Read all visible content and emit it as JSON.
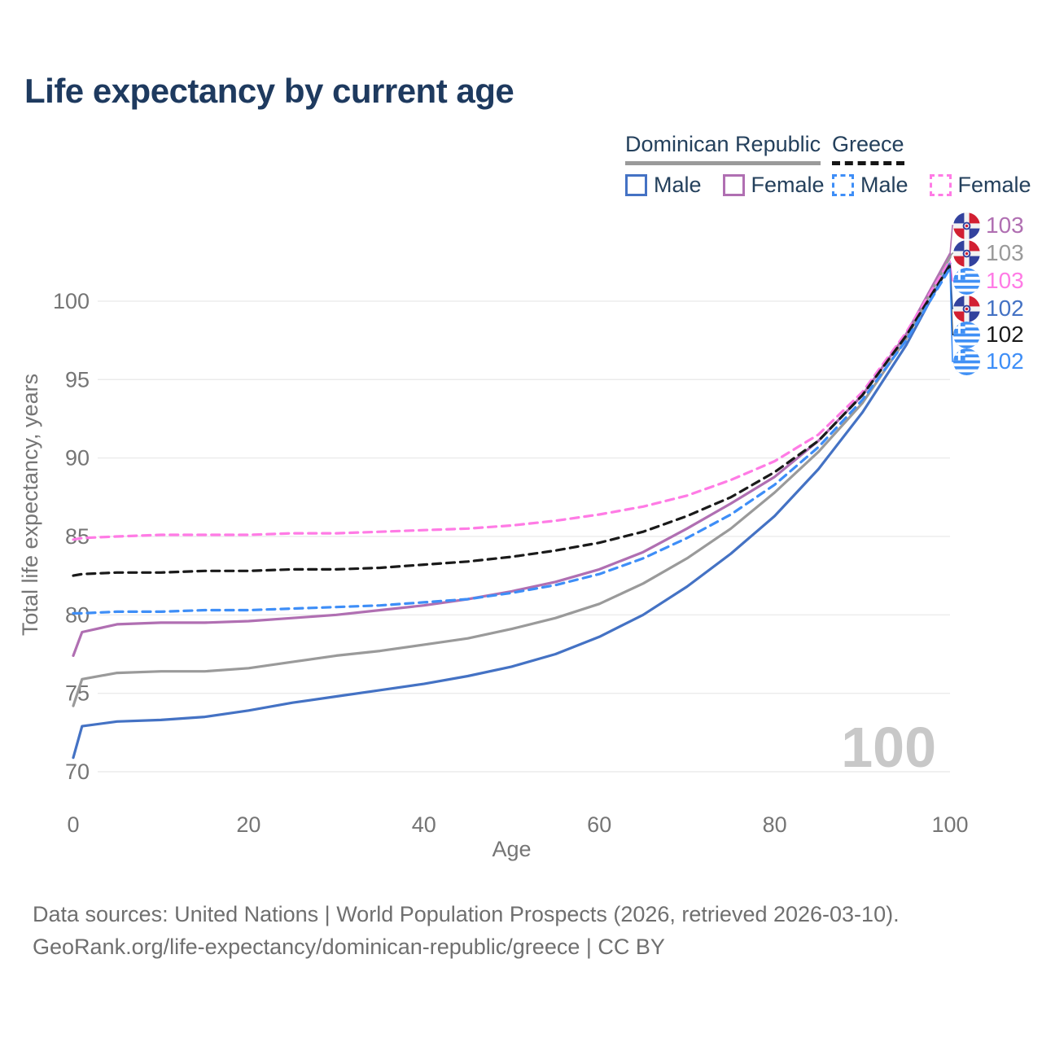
{
  "title": "Life expectancy by current age",
  "legend": {
    "groups": [
      {
        "label": "Dominican Republic",
        "style": "solid",
        "underline_color": "#9a9a9a",
        "items": [
          {
            "label": "Male",
            "color": "#4472c4",
            "dash": false
          },
          {
            "label": "Female",
            "color": "#b06fb2",
            "dash": false
          }
        ]
      },
      {
        "label": "Greece",
        "style": "dashed",
        "underline_color": "#151515",
        "items": [
          {
            "label": "Male",
            "color": "#3e8ef7",
            "dash": true
          },
          {
            "label": "Female",
            "color": "#ff7be5",
            "dash": true
          }
        ]
      }
    ]
  },
  "watermark": "100",
  "chart_data": {
    "type": "line",
    "title": "Life expectancy by current age",
    "xlabel": "Age",
    "ylabel": "Total life expectancy, years",
    "x_ticks": [
      0,
      20,
      40,
      60,
      80,
      100
    ],
    "y_ticks": [
      70,
      75,
      80,
      85,
      90,
      95,
      100
    ],
    "xlim": [
      0,
      100
    ],
    "ylim": [
      70,
      103.5
    ],
    "grid": true,
    "legend_position": "top-right",
    "x": [
      0,
      1,
      5,
      10,
      15,
      20,
      25,
      30,
      35,
      40,
      45,
      50,
      55,
      60,
      65,
      70,
      75,
      80,
      85,
      90,
      95,
      100
    ],
    "series": [
      {
        "name": "Dominican Republic — Female",
        "country": "Dominican Republic",
        "sex": "Female",
        "color": "#b06fb2",
        "dash": false,
        "end_label": "103",
        "values": [
          77.4,
          78.9,
          79.4,
          79.5,
          79.5,
          79.6,
          79.8,
          80.0,
          80.3,
          80.6,
          81.0,
          81.5,
          82.1,
          82.9,
          84.0,
          85.5,
          87.1,
          88.8,
          91.1,
          94.0,
          97.9,
          103.0
        ]
      },
      {
        "name": "Dominican Republic — Both sexes",
        "country": "Dominican Republic",
        "sex": "Both",
        "color": "#9a9a9a",
        "dash": false,
        "end_label": "103",
        "values": [
          74.2,
          75.9,
          76.3,
          76.4,
          76.4,
          76.6,
          77.0,
          77.4,
          77.7,
          78.1,
          78.5,
          79.1,
          79.8,
          80.7,
          82.0,
          83.6,
          85.5,
          87.8,
          90.4,
          93.5,
          97.6,
          102.8
        ]
      },
      {
        "name": "Greece — Female",
        "country": "Greece",
        "sex": "Female",
        "color": "#ff7be5",
        "dash": true,
        "end_label": "103",
        "values": [
          84.8,
          84.9,
          85.0,
          85.1,
          85.1,
          85.1,
          85.2,
          85.2,
          85.3,
          85.4,
          85.5,
          85.7,
          86.0,
          86.4,
          86.9,
          87.6,
          88.6,
          89.8,
          91.5,
          94.2,
          98.0,
          102.6
        ]
      },
      {
        "name": "Dominican Republic — Male",
        "country": "Dominican Republic",
        "sex": "Male",
        "color": "#4472c4",
        "dash": false,
        "end_label": "102",
        "values": [
          70.9,
          72.9,
          73.2,
          73.3,
          73.5,
          73.9,
          74.4,
          74.8,
          75.2,
          75.6,
          76.1,
          76.7,
          77.5,
          78.6,
          80.0,
          81.8,
          83.9,
          86.3,
          89.3,
          92.9,
          97.2,
          102.4
        ]
      },
      {
        "name": "Greece — Both sexes",
        "country": "Greece",
        "sex": "Both",
        "color": "#1a1a1a",
        "dash": true,
        "end_label": "102",
        "values": [
          82.5,
          82.6,
          82.7,
          82.7,
          82.8,
          82.8,
          82.9,
          82.9,
          83.0,
          83.2,
          83.4,
          83.7,
          84.1,
          84.6,
          85.3,
          86.3,
          87.5,
          89.1,
          91.1,
          94.0,
          97.8,
          102.3
        ]
      },
      {
        "name": "Greece — Male",
        "country": "Greece",
        "sex": "Male",
        "color": "#3e8ef7",
        "dash": true,
        "end_label": "102",
        "values": [
          80.1,
          80.1,
          80.2,
          80.2,
          80.3,
          80.3,
          80.4,
          80.5,
          80.6,
          80.8,
          81.0,
          81.4,
          81.9,
          82.6,
          83.6,
          84.9,
          86.4,
          88.3,
          90.7,
          93.7,
          97.5,
          102.1
        ]
      }
    ]
  },
  "footer": {
    "line1": "Data sources: United Nations | World Population Prospects (2026, retrieved 2026-03-10).",
    "line2": "GeoRank.org/life-expectancy/dominican-republic/greece | CC BY"
  }
}
